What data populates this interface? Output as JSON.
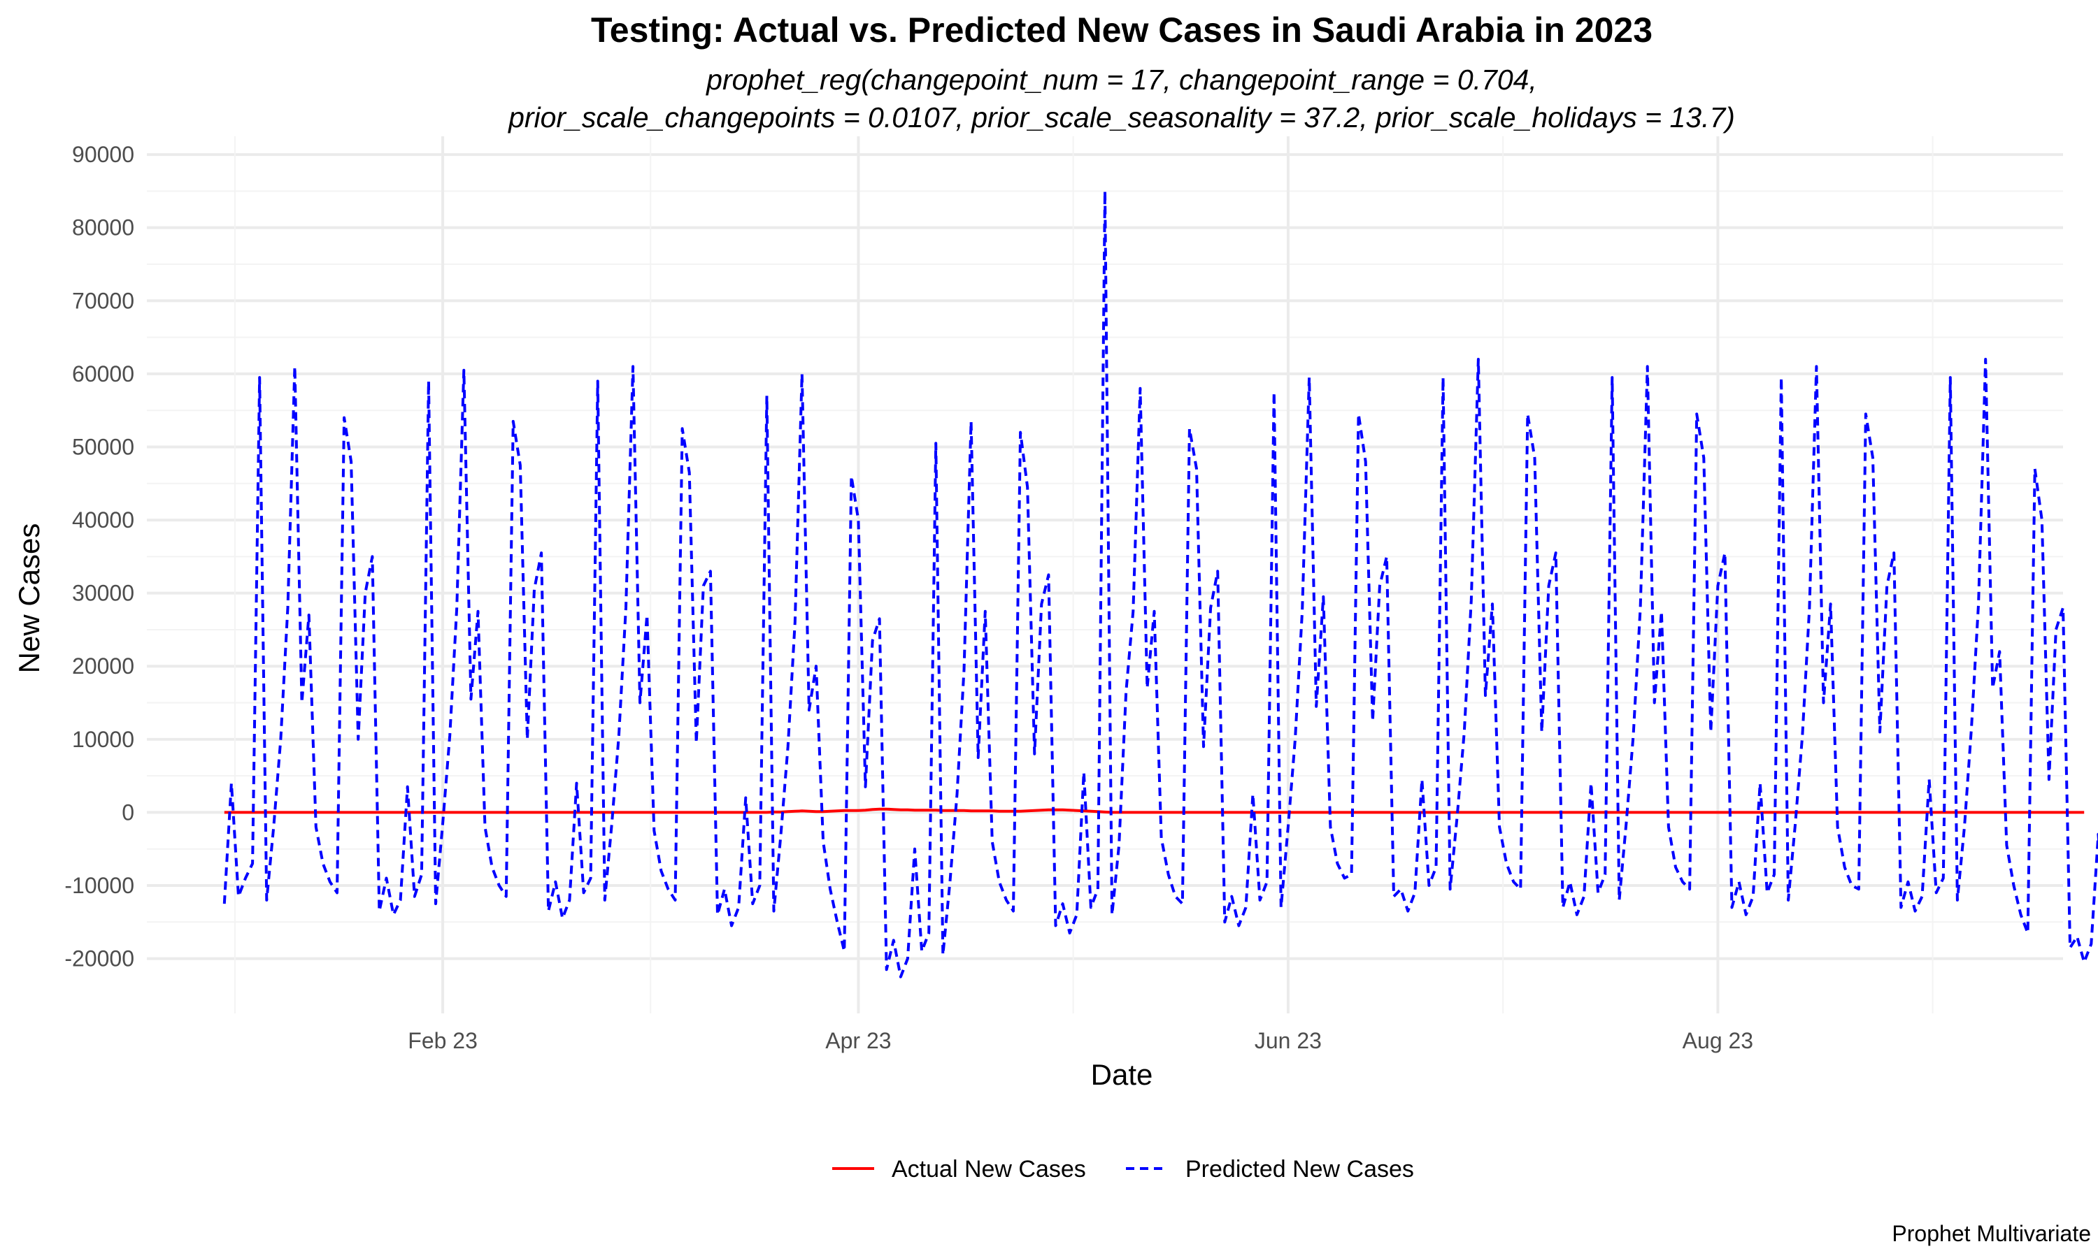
{
  "chart_data": {
    "type": "line",
    "title": "Testing: Actual vs. Predicted New Cases in Saudi Arabia in 2023",
    "subtitle_line1": "prophet_reg(changepoint_num = 17, changepoint_range = 0.704,",
    "subtitle_line2": "prior_scale_changepoints = 0.0107, prior_scale_seasonality = 37.2, prior_scale_holidays = 13.7)",
    "xlabel": "Date",
    "ylabel": "New Cases",
    "caption": "Prophet Multivariate",
    "x_start": "2023-01-01",
    "x_end": "2023-09-15",
    "xlim": [
      "2022-12-21",
      "2023-09-19"
    ],
    "ylim": [
      -27500,
      92500
    ],
    "x_ticks": [
      {
        "date": "2023-02-01",
        "label": "Feb 23"
      },
      {
        "date": "2023-04-01",
        "label": "Apr 23"
      },
      {
        "date": "2023-06-01",
        "label": "Jun 23"
      },
      {
        "date": "2023-08-01",
        "label": "Aug 23"
      }
    ],
    "y_ticks": [
      -20000,
      -10000,
      0,
      10000,
      20000,
      30000,
      40000,
      50000,
      60000,
      70000,
      80000,
      90000
    ],
    "grid": true,
    "legend_position": "bottom",
    "series": [
      {
        "name": "Actual New Cases",
        "color": "#ff0000",
        "line_style": "solid",
        "values": [
          0,
          0,
          0,
          0,
          0,
          0,
          0,
          0,
          0,
          0,
          0,
          0,
          0,
          0,
          0,
          0,
          0,
          0,
          0,
          0,
          0,
          0,
          0,
          0,
          0,
          0,
          0,
          0,
          0,
          0,
          0,
          0,
          0,
          0,
          0,
          0,
          0,
          0,
          0,
          0,
          0,
          0,
          0,
          0,
          0,
          0,
          0,
          0,
          0,
          0,
          0,
          0,
          0,
          0,
          0,
          0,
          0,
          0,
          0,
          0,
          0,
          0,
          0,
          0,
          0,
          0,
          0,
          0,
          0,
          0,
          0,
          0,
          0,
          0,
          0,
          0,
          0,
          0,
          50,
          50,
          100,
          150,
          200,
          150,
          100,
          100,
          150,
          200,
          250,
          250,
          250,
          300,
          400,
          450,
          450,
          400,
          350,
          350,
          300,
          300,
          300,
          300,
          250,
          250,
          250,
          250,
          200,
          200,
          200,
          200,
          150,
          150,
          150,
          150,
          200,
          250,
          300,
          350,
          350,
          350,
          300,
          250,
          200,
          150,
          100,
          50,
          0,
          0,
          0,
          0,
          0,
          0,
          0,
          0,
          0,
          0,
          0,
          0,
          0,
          0,
          0,
          0,
          0,
          0,
          0,
          0,
          0,
          0,
          0,
          0,
          0,
          0,
          0,
          0,
          0,
          0,
          0,
          0,
          0,
          0,
          0,
          0,
          0,
          0,
          0,
          0,
          0,
          0,
          0,
          0,
          0,
          0,
          0,
          0,
          0,
          0,
          0,
          0,
          0,
          0,
          0,
          0,
          0,
          0,
          0,
          0,
          0,
          0,
          0,
          0,
          0,
          0,
          0,
          0,
          0,
          0,
          0,
          0,
          0,
          0,
          0,
          0,
          0,
          0,
          0,
          0,
          0,
          0,
          0,
          0,
          0,
          0,
          0,
          0,
          0,
          0,
          0,
          0,
          0,
          0,
          0,
          0,
          0,
          0,
          0,
          0,
          0,
          0,
          0,
          0,
          0,
          0,
          0,
          0,
          0,
          0,
          0,
          0,
          0,
          0,
          0,
          0,
          0,
          0,
          0,
          0,
          0,
          0,
          0,
          0,
          0,
          0,
          0,
          0,
          0,
          0,
          0,
          0,
          0,
          0,
          0,
          0,
          0,
          0,
          0
        ]
      },
      {
        "name": "Predicted New Cases",
        "color": "#0000ff",
        "line_style": "dashed",
        "values": [
          -12500,
          4000,
          -11500,
          -9000,
          -7000,
          59500,
          -12000,
          -2000,
          10000,
          28000,
          61000,
          15000,
          27000,
          -2000,
          -7000,
          -9500,
          -11000,
          54000,
          48000,
          10000,
          30000,
          35000,
          -13500,
          -9000,
          -14000,
          -12000,
          3500,
          -11500,
          -8500,
          59000,
          -12500,
          -1500,
          10500,
          28000,
          60500,
          15500,
          27500,
          -2000,
          -7500,
          -10000,
          -11500,
          53500,
          47500,
          10000,
          30500,
          35500,
          -13500,
          -9500,
          -14500,
          -12000,
          4000,
          -11000,
          -9000,
          59000,
          -12000,
          -1500,
          10500,
          28000,
          61000,
          15000,
          27000,
          -2500,
          -8000,
          -10500,
          -12000,
          52500,
          46500,
          9500,
          31000,
          33000,
          -14000,
          -10500,
          -15500,
          -13000,
          2000,
          -12500,
          -10000,
          57000,
          -13500,
          -3000,
          9000,
          26000,
          60000,
          14000,
          20000,
          -4000,
          -10500,
          -15000,
          -19000,
          46000,
          40000,
          3500,
          23500,
          26500,
          -21500,
          -17500,
          -22500,
          -20000,
          -5000,
          -19000,
          -16500,
          50500,
          -19500,
          -9500,
          2500,
          19500,
          53500,
          7500,
          27500,
          -4000,
          -9500,
          -12000,
          -13500,
          52000,
          44500,
          8000,
          28500,
          32500,
          -15500,
          -12500,
          -16500,
          -14000,
          5500,
          -13000,
          -10500,
          85000,
          -14000,
          -4500,
          16500,
          27500,
          58000,
          17000,
          27500,
          -3500,
          -8500,
          -11500,
          -12500,
          52500,
          47000,
          9000,
          28000,
          33000,
          -15000,
          -11500,
          -15500,
          -13000,
          2500,
          -12000,
          -9500,
          57500,
          -13000,
          -2000,
          10000,
          27500,
          59500,
          14500,
          29500,
          -2000,
          -7000,
          -9000,
          -8500,
          54500,
          48000,
          12500,
          31000,
          35000,
          -11500,
          -10500,
          -13500,
          -11000,
          4500,
          -10000,
          -7500,
          59500,
          -10500,
          -500,
          11000,
          29000,
          62000,
          16000,
          28500,
          -2000,
          -7000,
          -9500,
          -10500,
          54500,
          48500,
          11000,
          31000,
          35500,
          -13000,
          -9500,
          -14000,
          -11500,
          4000,
          -11000,
          -8500,
          59500,
          -12000,
          -1500,
          10500,
          28000,
          61000,
          15000,
          27500,
          -2000,
          -7500,
          -9500,
          -10500,
          54500,
          48500,
          11000,
          31000,
          35500,
          -13000,
          -9500,
          -14000,
          -11500,
          4000,
          -11000,
          -8500,
          59500,
          -12000,
          -1500,
          10500,
          28000,
          61000,
          15000,
          28500,
          -2000,
          -7500,
          -10000,
          -10500,
          54500,
          48500,
          11000,
          31000,
          35500,
          -13000,
          -9500,
          -13500,
          -11500,
          4500,
          -11000,
          -9000,
          59500,
          -12000,
          -2000,
          11500,
          28500,
          62000,
          17000,
          22000,
          -4500,
          -10000,
          -14000,
          -16500,
          47000,
          40000,
          4500,
          25000,
          28000,
          -18500,
          -17000,
          -20500,
          -18000,
          -3000,
          -16000
        ]
      }
    ]
  }
}
